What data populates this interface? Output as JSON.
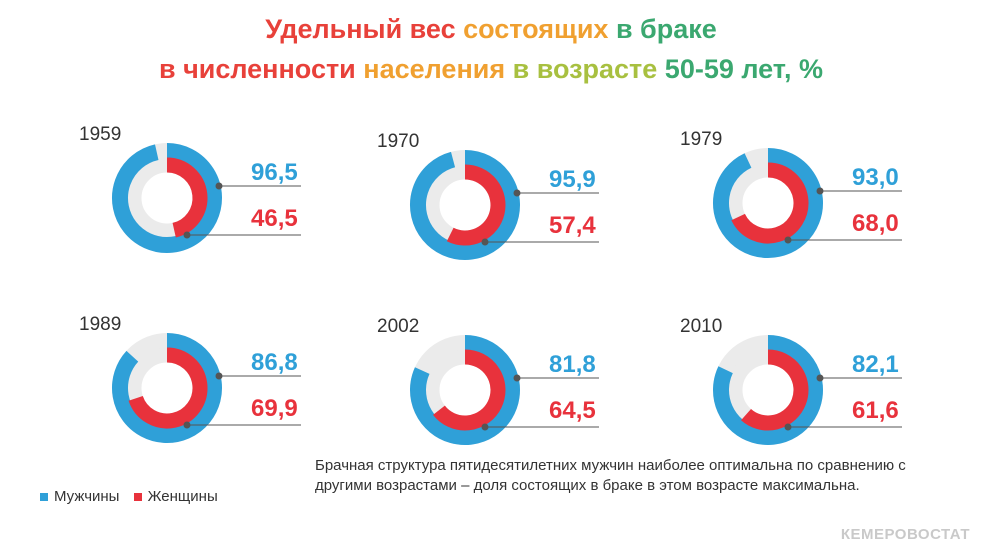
{
  "title": {
    "line1": [
      {
        "text": "Удельный вес ",
        "color": "#E8413A"
      },
      {
        "text": "состоящих ",
        "color": "#F0A030"
      },
      {
        "text": "в браке",
        "color": "#3BA870"
      }
    ],
    "line2": [
      {
        "text": "в численности ",
        "color": "#E8413A"
      },
      {
        "text": "населения ",
        "color": "#F0A030"
      },
      {
        "text": "в возрасте ",
        "color": "#A8C040"
      },
      {
        "text": "50-59 лет, %",
        "color": "#3BA870"
      }
    ]
  },
  "legend": [
    {
      "label": "Мужчины",
      "color": "#2FA0D8"
    },
    {
      "label": "Женщины",
      "color": "#E8323C"
    }
  ],
  "note": "Брачная структура пятидесятилетних  мужчин наиболее оптимальна по сравнению с другими возрастами – доля состоящих в браке в этом возрасте максимальна.",
  "watermark": "КЕМЕРОВОСТАТ",
  "colors": {
    "men": "#2FA0D8",
    "women": "#E8323C",
    "track": "#EBEBEB",
    "leader": "#555555"
  },
  "chart_data": {
    "type": "donut",
    "value_scale": [
      0,
      100
    ],
    "series_names": [
      "Мужчины",
      "Женщины"
    ],
    "items": [
      {
        "year": "1959",
        "men": 96.5,
        "women": 46.5,
        "men_label": "96,5",
        "women_label": "46,5"
      },
      {
        "year": "1970",
        "men": 95.9,
        "women": 57.4,
        "men_label": "95,9",
        "women_label": "57,4"
      },
      {
        "year": "1979",
        "men": 93.0,
        "women": 68.0,
        "men_label": "93,0",
        "women_label": "68,0"
      },
      {
        "year": "1989",
        "men": 86.8,
        "women": 69.9,
        "men_label": "86,8",
        "women_label": "69,9"
      },
      {
        "year": "2002",
        "men": 81.8,
        "women": 64.5,
        "men_label": "81,8",
        "women_label": "64,5"
      },
      {
        "year": "2010",
        "men": 82.1,
        "women": 61.6,
        "men_label": "82,1",
        "women_label": "61,6"
      }
    ]
  }
}
